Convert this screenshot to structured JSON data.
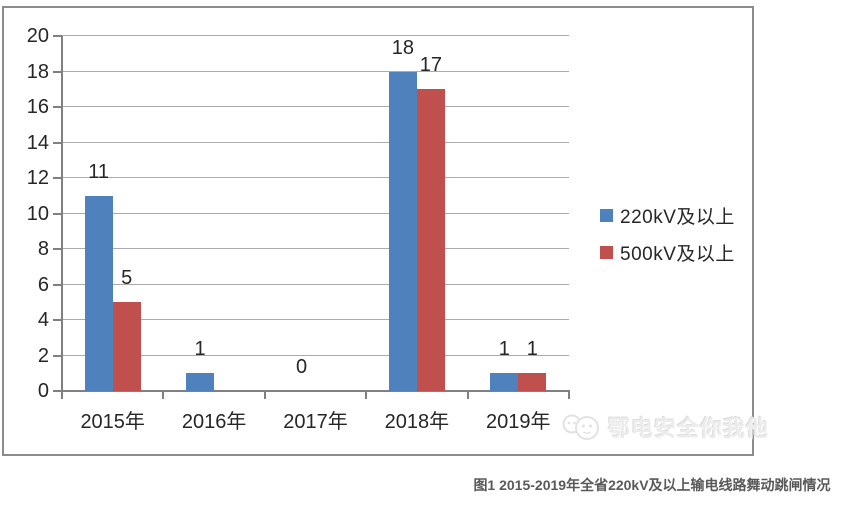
{
  "page": {
    "background": "#ffffff"
  },
  "chart": {
    "border_color": "#8b8b8b",
    "watermark": {
      "text": "鄂电安全你我他",
      "logo": "mascot-faces-logo"
    }
  },
  "caption": "图1  2015-2019年全省220kV及以上输电线路舞动跳闸情况",
  "chart_data": {
    "type": "bar",
    "title": "",
    "xlabel": "",
    "ylabel": "",
    "categories": [
      "2015年",
      "2016年",
      "2017年",
      "2018年",
      "2019年"
    ],
    "series": [
      {
        "name": "220kV及以上",
        "color": "#4F81BD",
        "values": [
          11,
          1,
          0,
          18,
          1
        ],
        "data_labels": [
          "11",
          "1",
          "0",
          "18",
          "1"
        ]
      },
      {
        "name": "500kV及以上",
        "color": "#C0504D",
        "values": [
          5,
          0,
          0,
          17,
          1
        ],
        "data_labels": [
          "5",
          "",
          "",
          "17",
          "1"
        ]
      }
    ],
    "ylim": [
      0,
      20
    ],
    "yticks": [
      0,
      2,
      4,
      6,
      8,
      10,
      12,
      14,
      16,
      18,
      20
    ],
    "grid": true,
    "gridline_color": "#ababab",
    "axis_color": "#808080",
    "text_color": "#262626",
    "legend_position": "right-middle"
  }
}
